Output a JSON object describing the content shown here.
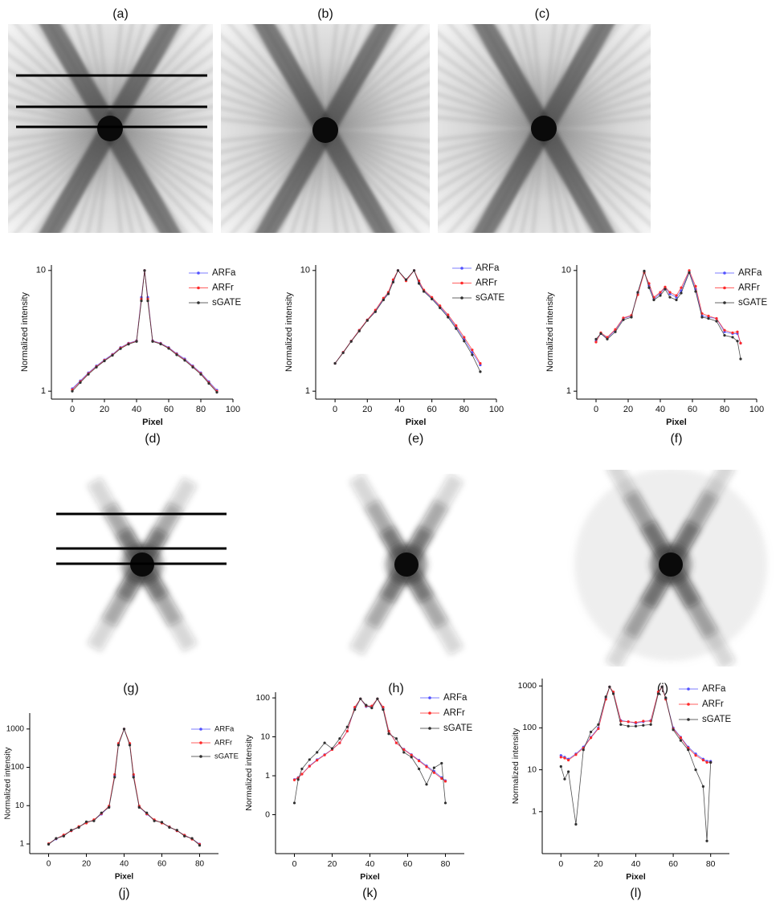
{
  "image_labels": [
    "(a)",
    "(b)",
    "(c)",
    "(g)",
    "(h)",
    "(i)"
  ],
  "chart_data": [
    {
      "type": "line",
      "label": "(d)",
      "xlabel": "Pixel",
      "ylabel": "Normalized intensity",
      "log_y": true,
      "legend": "upper right",
      "x": [
        0,
        5,
        10,
        15,
        20,
        25,
        30,
        35,
        40,
        43,
        45,
        47,
        50,
        55,
        60,
        65,
        70,
        75,
        80,
        85,
        90
      ],
      "series": [
        {
          "name": "ARFa",
          "color": "#5050ff",
          "values": [
            1.05,
            1.22,
            1.42,
            1.62,
            1.82,
            2.02,
            2.3,
            2.5,
            2.62,
            6.0,
            10,
            6.0,
            2.62,
            2.5,
            2.3,
            2.05,
            1.85,
            1.62,
            1.42,
            1.2,
            1.02
          ]
        },
        {
          "name": "ARFr",
          "color": "#ff2a2a",
          "values": [
            1.03,
            1.2,
            1.4,
            1.6,
            1.8,
            2.0,
            2.28,
            2.48,
            2.6,
            5.8,
            10,
            5.8,
            2.6,
            2.48,
            2.28,
            2.03,
            1.82,
            1.6,
            1.4,
            1.18,
            1.0
          ]
        },
        {
          "name": "sGATE",
          "color": "#303030",
          "values": [
            1.0,
            1.18,
            1.38,
            1.58,
            1.78,
            1.98,
            2.25,
            2.45,
            2.58,
            5.6,
            10,
            5.6,
            2.58,
            2.46,
            2.26,
            2.0,
            1.8,
            1.58,
            1.38,
            1.16,
            0.98
          ]
        }
      ],
      "xlim": [
        -13,
        100
      ],
      "ylim": [
        0.86,
        11.1
      ],
      "xticks": [
        0,
        20,
        40,
        60,
        80,
        100
      ],
      "yticks": [
        1,
        10
      ]
    },
    {
      "type": "line",
      "label": "(e)",
      "xlabel": "Pixel",
      "ylabel": "Normalized intensity",
      "log_y": true,
      "legend": "upper right",
      "x": [
        0,
        5,
        10,
        15,
        20,
        25,
        30,
        33,
        36,
        39,
        44,
        49,
        52,
        55,
        60,
        65,
        70,
        75,
        80,
        85,
        90
      ],
      "series": [
        {
          "name": "ARFa",
          "color": "#5050ff",
          "values": [
            1.7,
            2.1,
            2.6,
            3.2,
            3.9,
            4.6,
            5.8,
            6.5,
            8.2,
            10,
            8.3,
            10,
            8.0,
            6.8,
            5.9,
            5.0,
            4.2,
            3.4,
            2.7,
            2.1,
            1.65
          ]
        },
        {
          "name": "ARFr",
          "color": "#ff2a2a",
          "values": [
            1.7,
            2.1,
            2.6,
            3.2,
            3.9,
            4.7,
            5.9,
            6.6,
            8.4,
            10,
            8.2,
            10,
            8.2,
            6.9,
            6.0,
            5.1,
            4.3,
            3.5,
            2.8,
            2.2,
            1.7
          ]
        },
        {
          "name": "sGATE",
          "color": "#303030",
          "values": [
            1.7,
            2.08,
            2.58,
            3.15,
            3.85,
            4.55,
            5.7,
            6.4,
            8.0,
            10,
            8.4,
            10,
            7.8,
            6.7,
            5.8,
            4.9,
            4.1,
            3.3,
            2.6,
            2.0,
            1.45
          ]
        }
      ],
      "xlim": [
        -12,
        100
      ],
      "ylim": [
        0.86,
        11.1
      ],
      "xticks": [
        0,
        20,
        40,
        60,
        80,
        100
      ],
      "yticks": [
        1,
        10
      ]
    },
    {
      "type": "line",
      "label": "(f)",
      "xlabel": "Pixel",
      "ylabel": "Normalized intensity",
      "log_y": true,
      "legend": "upper right",
      "x": [
        0,
        3,
        7,
        12,
        17,
        22,
        26,
        30,
        33,
        36,
        40,
        43,
        46,
        50,
        53,
        58,
        62,
        66,
        70,
        75,
        80,
        85,
        88,
        90
      ],
      "series": [
        {
          "name": "ARFa",
          "color": "#5050ff",
          "values": [
            2.6,
            3.0,
            2.75,
            3.2,
            4.0,
            4.2,
            6.5,
            9.8,
            7.5,
            5.8,
            6.5,
            7.2,
            6.4,
            6.0,
            6.8,
            9.8,
            7.0,
            4.2,
            4.1,
            4.0,
            3.1,
            3.0,
            3.0,
            2.5
          ]
        },
        {
          "name": "ARFr",
          "color": "#ff2a2a",
          "values": [
            2.55,
            3.05,
            2.8,
            3.25,
            4.05,
            4.25,
            6.3,
            9.6,
            7.8,
            6.0,
            6.6,
            7.3,
            6.6,
            6.2,
            7.2,
            10,
            7.4,
            4.4,
            4.2,
            4.0,
            3.2,
            3.05,
            3.1,
            2.5
          ]
        },
        {
          "name": "sGATE",
          "color": "#303030",
          "values": [
            2.7,
            3.0,
            2.7,
            3.1,
            3.9,
            4.1,
            6.6,
            9.9,
            7.2,
            5.7,
            6.2,
            7.0,
            6.0,
            5.7,
            6.5,
            9.6,
            6.7,
            4.1,
            4.0,
            3.8,
            2.9,
            2.8,
            2.6,
            1.85
          ]
        }
      ],
      "xlim": [
        -12,
        100
      ],
      "ylim": [
        0.86,
        11.1
      ],
      "xticks": [
        0,
        20,
        40,
        60,
        80,
        100
      ],
      "yticks": [
        1,
        10
      ]
    },
    {
      "type": "line",
      "label": "(j)",
      "xlabel": "Pixel",
      "ylabel": "Normalized intensity",
      "log_y": true,
      "legend": "upper right",
      "x": [
        0,
        4,
        8,
        12,
        16,
        20,
        24,
        28,
        32,
        35,
        37,
        40,
        43,
        45,
        48,
        52,
        56,
        60,
        64,
        68,
        72,
        76,
        80
      ],
      "series": [
        {
          "name": "ARFa",
          "color": "#5050ff",
          "values": [
            1.0,
            1.35,
            1.7,
            2.2,
            2.8,
            3.6,
            4.2,
            6,
            9.5,
            60,
            400,
            1000,
            400,
            60,
            9.5,
            6,
            4.2,
            3.6,
            2.8,
            2.2,
            1.7,
            1.35,
            1.0
          ]
        },
        {
          "name": "ARFr",
          "color": "#ff2a2a",
          "values": [
            1.02,
            1.38,
            1.72,
            2.2,
            2.85,
            3.5,
            4.3,
            6.2,
            9.8,
            65,
            420,
            1000,
            420,
            65,
            9.8,
            6.1,
            4.3,
            3.5,
            2.8,
            2.2,
            1.7,
            1.33,
            0.98
          ]
        },
        {
          "name": "sGATE",
          "color": "#303030",
          "values": [
            0.98,
            1.4,
            1.6,
            2.3,
            2.7,
            3.8,
            4.0,
            6.5,
            9,
            55,
            380,
            1000,
            380,
            55,
            9,
            6.5,
            4.0,
            3.7,
            2.7,
            2.3,
            1.6,
            1.4,
            0.92
          ]
        }
      ],
      "xlim": [
        -10,
        90
      ],
      "ylim": [
        0.56,
        2600
      ],
      "xticks": [
        0,
        20,
        40,
        60,
        80
      ],
      "yticks": [
        1,
        10,
        100,
        1000
      ]
    },
    {
      "type": "line",
      "label": "(k)",
      "xlabel": "Pixel",
      "ylabel": "Normalized intensity",
      "log_y": true,
      "legend": "upper right",
      "x": [
        0,
        2,
        4,
        8,
        12,
        16,
        20,
        24,
        28,
        32,
        35,
        38,
        41,
        44,
        47,
        50,
        54,
        58,
        62,
        66,
        70,
        74,
        78,
        80
      ],
      "series": [
        {
          "name": "ARFa",
          "color": "#5050ff",
          "values": [
            0.8,
            0.9,
            1.1,
            1.8,
            2.6,
            3.5,
            4.8,
            7,
            14,
            55,
            95,
            60,
            60,
            95,
            55,
            14,
            7,
            4.8,
            3.5,
            2.5,
            1.8,
            1.3,
            0.9,
            0.75
          ]
        },
        {
          "name": "ARFr",
          "color": "#ff2a2a",
          "values": [
            0.78,
            0.88,
            1.1,
            1.75,
            2.5,
            3.4,
            4.7,
            7,
            14,
            58,
            95,
            62,
            62,
            95,
            58,
            14,
            7,
            4.7,
            3.4,
            2.4,
            1.7,
            1.2,
            0.85,
            0.72
          ]
        },
        {
          "name": "sGATE",
          "color": "#303030",
          "values": [
            0.2,
            0.8,
            1.5,
            2.6,
            4,
            7,
            5,
            9,
            18,
            50,
            95,
            65,
            55,
            95,
            50,
            12,
            9,
            4,
            3,
            1.5,
            0.6,
            1.6,
            2.1,
            0.2
          ]
        }
      ],
      "xlim": [
        -10,
        90
      ],
      "ylim": [
        0.01,
        140
      ],
      "xticks": [
        0,
        20,
        40,
        60,
        80
      ],
      "yticks": [
        {
          "value": 0.1,
          "label": "0"
        },
        1,
        10,
        100
      ]
    },
    {
      "type": "line",
      "label": "(l)",
      "xlabel": "Pixel",
      "ylabel": "Normalized intensity",
      "log_y": true,
      "legend": "upper right",
      "x": [
        0,
        2,
        4,
        8,
        12,
        16,
        20,
        24,
        26,
        28,
        32,
        36,
        40,
        44,
        48,
        52,
        54,
        56,
        60,
        64,
        68,
        72,
        76,
        78,
        80
      ],
      "series": [
        {
          "name": "ARFa",
          "color": "#5050ff",
          "values": [
            22,
            20,
            18,
            24,
            35,
            60,
            100,
            500,
            950,
            700,
            150,
            140,
            130,
            140,
            150,
            700,
            950,
            500,
            100,
            60,
            35,
            24,
            18,
            16,
            16
          ]
        },
        {
          "name": "ARFr",
          "color": "#ff2a2a",
          "values": [
            20,
            19,
            17,
            23,
            33,
            58,
            95,
            480,
            950,
            720,
            145,
            140,
            135,
            145,
            145,
            720,
            950,
            480,
            95,
            58,
            33,
            22,
            17,
            15,
            15
          ]
        },
        {
          "name": "sGATE",
          "color": "#303030",
          "values": [
            12,
            6,
            9,
            0.5,
            30,
            80,
            120,
            550,
            950,
            650,
            120,
            110,
            110,
            115,
            120,
            650,
            950,
            520,
            90,
            50,
            30,
            10,
            4,
            0.2,
            15
          ]
        }
      ],
      "xlim": [
        -10,
        90
      ],
      "ylim": [
        0.1,
        1500
      ],
      "xticks": [
        0,
        20,
        40,
        60,
        80
      ],
      "yticks": [
        1,
        10,
        100,
        1000
      ]
    }
  ]
}
